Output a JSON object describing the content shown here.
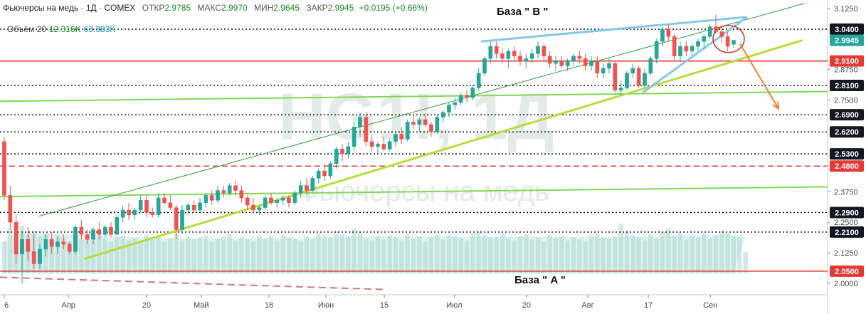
{
  "header": {
    "title": "Фьючерсы на медь · 1Д · COMEX",
    "open_label": "ОТКР",
    "open": "2.9785",
    "high_label": "МАКС",
    "high": "2.9970",
    "low_label": "МИН",
    "low": "2.9645",
    "close_label": "ЗАКР",
    "close": "2.9945",
    "change": "+0.0195 (+0.66%)",
    "volume_label": "Объём 20",
    "volume_value": "12.316K",
    "volume_ma": "63.383K"
  },
  "annotations": {
    "base_b": "База \" B \"",
    "base_a": "База \" A \""
  },
  "watermark": {
    "symbol": "HG1!, 1Д",
    "name": "Фьючерсы на медь"
  },
  "colors": {
    "up": "#26a69a",
    "down": "#ef5350",
    "level_red": "#e53935",
    "trend_green": "#7ed957",
    "trend_olive": "#b8dc3c",
    "channel": "#2e9e3c",
    "wedge": "#87c7e8",
    "arrow": "#f07f2a",
    "volume": "#a9d8d0"
  },
  "chart_data": {
    "type": "candlestick",
    "title": "Фьючерсы на медь · 1Д · COMEX",
    "y_axis": {
      "ticks": [
        "3.1250",
        "2.8750",
        "2.7500",
        "2.3750",
        "2.2500",
        "2.1250",
        "2.0000"
      ],
      "range": [
        1.965,
        3.145
      ]
    },
    "x_axis": {
      "tick_labels": [
        "6",
        "Апр",
        "20",
        "Май",
        "18",
        "Июн",
        "15",
        "Июл",
        "20",
        "Авг",
        "17",
        "Сен"
      ]
    },
    "price_levels": [
      {
        "value": 3.04,
        "label": "3.0400",
        "style": "dotted",
        "color": "#000000"
      },
      {
        "value": 2.91,
        "label": "2.9100",
        "style": "solid",
        "color": "#e53935"
      },
      {
        "value": 2.81,
        "label": "2.8100",
        "style": "dotted",
        "color": "#000000"
      },
      {
        "value": 2.69,
        "label": "2.6900",
        "style": "dotted",
        "color": "#000000"
      },
      {
        "value": 2.62,
        "label": "2.6200",
        "style": "dotted",
        "color": "#000000"
      },
      {
        "value": 2.53,
        "label": "2.5300",
        "style": "dotted",
        "color": "#000000"
      },
      {
        "value": 2.48,
        "label": "2.4800",
        "style": "dashed",
        "color": "#e53935"
      },
      {
        "value": 2.29,
        "label": "2.2900",
        "style": "dotted",
        "color": "#000000"
      },
      {
        "value": 2.21,
        "label": "2.2100",
        "style": "dotted",
        "color": "#000000"
      },
      {
        "value": 2.05,
        "label": "2.0500",
        "style": "solid",
        "color": "#e53935"
      }
    ],
    "last_price": {
      "value": 2.9945,
      "label": "2.9945"
    },
    "candles": [
      {
        "o": 2.58,
        "h": 2.6,
        "l": 2.34,
        "c": 2.36
      },
      {
        "o": 2.36,
        "h": 2.4,
        "l": 2.22,
        "c": 2.25
      },
      {
        "o": 2.25,
        "h": 2.28,
        "l": 2.08,
        "c": 2.12
      },
      {
        "o": 2.12,
        "h": 2.21,
        "l": 2.0,
        "c": 2.18
      },
      {
        "o": 2.18,
        "h": 2.23,
        "l": 2.09,
        "c": 2.13
      },
      {
        "o": 2.13,
        "h": 2.2,
        "l": 2.06,
        "c": 2.08
      },
      {
        "o": 2.08,
        "h": 2.16,
        "l": 2.06,
        "c": 2.14
      },
      {
        "o": 2.14,
        "h": 2.2,
        "l": 2.11,
        "c": 2.18
      },
      {
        "o": 2.18,
        "h": 2.21,
        "l": 2.12,
        "c": 2.15
      },
      {
        "o": 2.15,
        "h": 2.19,
        "l": 2.12,
        "c": 2.17
      },
      {
        "o": 2.17,
        "h": 2.2,
        "l": 2.14,
        "c": 2.16
      },
      {
        "o": 2.16,
        "h": 2.17,
        "l": 2.12,
        "c": 2.13
      },
      {
        "o": 2.13,
        "h": 2.24,
        "l": 2.12,
        "c": 2.23
      },
      {
        "o": 2.23,
        "h": 2.26,
        "l": 2.18,
        "c": 2.2
      },
      {
        "o": 2.2,
        "h": 2.22,
        "l": 2.16,
        "c": 2.18
      },
      {
        "o": 2.18,
        "h": 2.23,
        "l": 2.16,
        "c": 2.22
      },
      {
        "o": 2.22,
        "h": 2.25,
        "l": 2.18,
        "c": 2.2
      },
      {
        "o": 2.2,
        "h": 2.24,
        "l": 2.19,
        "c": 2.23
      },
      {
        "o": 2.23,
        "h": 2.25,
        "l": 2.19,
        "c": 2.2
      },
      {
        "o": 2.2,
        "h": 2.28,
        "l": 2.2,
        "c": 2.27
      },
      {
        "o": 2.27,
        "h": 2.32,
        "l": 2.25,
        "c": 2.3
      },
      {
        "o": 2.3,
        "h": 2.33,
        "l": 2.26,
        "c": 2.28
      },
      {
        "o": 2.28,
        "h": 2.31,
        "l": 2.26,
        "c": 2.3
      },
      {
        "o": 2.3,
        "h": 2.36,
        "l": 2.29,
        "c": 2.34
      },
      {
        "o": 2.34,
        "h": 2.36,
        "l": 2.27,
        "c": 2.29
      },
      {
        "o": 2.29,
        "h": 2.31,
        "l": 2.27,
        "c": 2.28
      },
      {
        "o": 2.28,
        "h": 2.37,
        "l": 2.27,
        "c": 2.35
      },
      {
        "o": 2.35,
        "h": 2.37,
        "l": 2.32,
        "c": 2.33
      },
      {
        "o": 2.33,
        "h": 2.36,
        "l": 2.3,
        "c": 2.31
      },
      {
        "o": 2.31,
        "h": 2.32,
        "l": 2.18,
        "c": 2.22
      },
      {
        "o": 2.22,
        "h": 2.32,
        "l": 2.2,
        "c": 2.3
      },
      {
        "o": 2.3,
        "h": 2.33,
        "l": 2.28,
        "c": 2.32
      },
      {
        "o": 2.32,
        "h": 2.34,
        "l": 2.29,
        "c": 2.3
      },
      {
        "o": 2.3,
        "h": 2.35,
        "l": 2.29,
        "c": 2.33
      },
      {
        "o": 2.33,
        "h": 2.37,
        "l": 2.31,
        "c": 2.36
      },
      {
        "o": 2.36,
        "h": 2.38,
        "l": 2.32,
        "c": 2.34
      },
      {
        "o": 2.34,
        "h": 2.4,
        "l": 2.33,
        "c": 2.38
      },
      {
        "o": 2.38,
        "h": 2.4,
        "l": 2.35,
        "c": 2.37
      },
      {
        "o": 2.37,
        "h": 2.41,
        "l": 2.36,
        "c": 2.4
      },
      {
        "o": 2.4,
        "h": 2.42,
        "l": 2.36,
        "c": 2.38
      },
      {
        "o": 2.38,
        "h": 2.4,
        "l": 2.33,
        "c": 2.35
      },
      {
        "o": 2.35,
        "h": 2.36,
        "l": 2.3,
        "c": 2.32
      },
      {
        "o": 2.32,
        "h": 2.35,
        "l": 2.29,
        "c": 2.3
      },
      {
        "o": 2.3,
        "h": 2.32,
        "l": 2.28,
        "c": 2.31
      },
      {
        "o": 2.31,
        "h": 2.36,
        "l": 2.3,
        "c": 2.35
      },
      {
        "o": 2.35,
        "h": 2.37,
        "l": 2.32,
        "c": 2.33
      },
      {
        "o": 2.33,
        "h": 2.35,
        "l": 2.31,
        "c": 2.34
      },
      {
        "o": 2.34,
        "h": 2.36,
        "l": 2.32,
        "c": 2.35
      },
      {
        "o": 2.35,
        "h": 2.36,
        "l": 2.31,
        "c": 2.33
      },
      {
        "o": 2.33,
        "h": 2.38,
        "l": 2.32,
        "c": 2.37
      },
      {
        "o": 2.37,
        "h": 2.42,
        "l": 2.35,
        "c": 2.4
      },
      {
        "o": 2.4,
        "h": 2.43,
        "l": 2.36,
        "c": 2.38
      },
      {
        "o": 2.38,
        "h": 2.44,
        "l": 2.37,
        "c": 2.43
      },
      {
        "o": 2.43,
        "h": 2.47,
        "l": 2.41,
        "c": 2.46
      },
      {
        "o": 2.46,
        "h": 2.49,
        "l": 2.42,
        "c": 2.44
      },
      {
        "o": 2.44,
        "h": 2.5,
        "l": 2.43,
        "c": 2.49
      },
      {
        "o": 2.49,
        "h": 2.56,
        "l": 2.47,
        "c": 2.55
      },
      {
        "o": 2.55,
        "h": 2.57,
        "l": 2.5,
        "c": 2.53
      },
      {
        "o": 2.53,
        "h": 2.58,
        "l": 2.51,
        "c": 2.56
      },
      {
        "o": 2.56,
        "h": 2.66,
        "l": 2.54,
        "c": 2.64
      },
      {
        "o": 2.64,
        "h": 2.7,
        "l": 2.6,
        "c": 2.68
      },
      {
        "o": 2.68,
        "h": 2.7,
        "l": 2.56,
        "c": 2.58
      },
      {
        "o": 2.58,
        "h": 2.61,
        "l": 2.54,
        "c": 2.56
      },
      {
        "o": 2.56,
        "h": 2.58,
        "l": 2.53,
        "c": 2.57
      },
      {
        "o": 2.57,
        "h": 2.6,
        "l": 2.54,
        "c": 2.55
      },
      {
        "o": 2.55,
        "h": 2.59,
        "l": 2.54,
        "c": 2.58
      },
      {
        "o": 2.58,
        "h": 2.62,
        "l": 2.56,
        "c": 2.61
      },
      {
        "o": 2.61,
        "h": 2.64,
        "l": 2.57,
        "c": 2.59
      },
      {
        "o": 2.59,
        "h": 2.67,
        "l": 2.58,
        "c": 2.66
      },
      {
        "o": 2.66,
        "h": 2.69,
        "l": 2.63,
        "c": 2.65
      },
      {
        "o": 2.65,
        "h": 2.68,
        "l": 2.62,
        "c": 2.67
      },
      {
        "o": 2.67,
        "h": 2.69,
        "l": 2.64,
        "c": 2.65
      },
      {
        "o": 2.65,
        "h": 2.66,
        "l": 2.6,
        "c": 2.62
      },
      {
        "o": 2.62,
        "h": 2.69,
        "l": 2.61,
        "c": 2.68
      },
      {
        "o": 2.68,
        "h": 2.71,
        "l": 2.66,
        "c": 2.7
      },
      {
        "o": 2.7,
        "h": 2.74,
        "l": 2.68,
        "c": 2.73
      },
      {
        "o": 2.73,
        "h": 2.76,
        "l": 2.71,
        "c": 2.74
      },
      {
        "o": 2.74,
        "h": 2.78,
        "l": 2.73,
        "c": 2.77
      },
      {
        "o": 2.77,
        "h": 2.79,
        "l": 2.74,
        "c": 2.76
      },
      {
        "o": 2.76,
        "h": 2.81,
        "l": 2.75,
        "c": 2.8
      },
      {
        "o": 2.8,
        "h": 2.88,
        "l": 2.79,
        "c": 2.86
      },
      {
        "o": 2.86,
        "h": 2.93,
        "l": 2.85,
        "c": 2.92
      },
      {
        "o": 2.92,
        "h": 2.99,
        "l": 2.9,
        "c": 2.97
      },
      {
        "o": 2.97,
        "h": 2.99,
        "l": 2.92,
        "c": 2.94
      },
      {
        "o": 2.94,
        "h": 2.96,
        "l": 2.9,
        "c": 2.92
      },
      {
        "o": 2.92,
        "h": 2.96,
        "l": 2.88,
        "c": 2.95
      },
      {
        "o": 2.95,
        "h": 2.97,
        "l": 2.91,
        "c": 2.93
      },
      {
        "o": 2.93,
        "h": 2.95,
        "l": 2.89,
        "c": 2.91
      },
      {
        "o": 2.91,
        "h": 2.94,
        "l": 2.88,
        "c": 2.92
      },
      {
        "o": 2.92,
        "h": 2.96,
        "l": 2.9,
        "c": 2.94
      },
      {
        "o": 2.94,
        "h": 2.99,
        "l": 2.92,
        "c": 2.97
      },
      {
        "o": 2.97,
        "h": 2.98,
        "l": 2.91,
        "c": 2.93
      },
      {
        "o": 2.93,
        "h": 2.95,
        "l": 2.88,
        "c": 2.9
      },
      {
        "o": 2.9,
        "h": 2.93,
        "l": 2.87,
        "c": 2.91
      },
      {
        "o": 2.91,
        "h": 2.93,
        "l": 2.88,
        "c": 2.89
      },
      {
        "o": 2.89,
        "h": 2.92,
        "l": 2.87,
        "c": 2.91
      },
      {
        "o": 2.91,
        "h": 2.94,
        "l": 2.89,
        "c": 2.93
      },
      {
        "o": 2.93,
        "h": 2.95,
        "l": 2.9,
        "c": 2.92
      },
      {
        "o": 2.92,
        "h": 2.94,
        "l": 2.87,
        "c": 2.89
      },
      {
        "o": 2.89,
        "h": 2.93,
        "l": 2.87,
        "c": 2.91
      },
      {
        "o": 2.91,
        "h": 2.93,
        "l": 2.84,
        "c": 2.86
      },
      {
        "o": 2.86,
        "h": 2.9,
        "l": 2.84,
        "c": 2.88
      },
      {
        "o": 2.88,
        "h": 2.92,
        "l": 2.86,
        "c": 2.9
      },
      {
        "o": 2.9,
        "h": 2.91,
        "l": 2.78,
        "c": 2.79
      },
      {
        "o": 2.79,
        "h": 2.83,
        "l": 2.77,
        "c": 2.8
      },
      {
        "o": 2.8,
        "h": 2.87,
        "l": 2.79,
        "c": 2.86
      },
      {
        "o": 2.86,
        "h": 2.9,
        "l": 2.84,
        "c": 2.88
      },
      {
        "o": 2.88,
        "h": 2.89,
        "l": 2.8,
        "c": 2.81
      },
      {
        "o": 2.81,
        "h": 2.88,
        "l": 2.8,
        "c": 2.86
      },
      {
        "o": 2.86,
        "h": 2.93,
        "l": 2.85,
        "c": 2.92
      },
      {
        "o": 2.92,
        "h": 3.0,
        "l": 2.9,
        "c": 2.99
      },
      {
        "o": 2.99,
        "h": 3.05,
        "l": 2.97,
        "c": 3.04
      },
      {
        "o": 3.04,
        "h": 3.06,
        "l": 2.99,
        "c": 3.01
      },
      {
        "o": 3.01,
        "h": 3.02,
        "l": 2.91,
        "c": 2.93
      },
      {
        "o": 2.93,
        "h": 2.99,
        "l": 2.91,
        "c": 2.97
      },
      {
        "o": 2.97,
        "h": 2.99,
        "l": 2.93,
        "c": 2.95
      },
      {
        "o": 2.95,
        "h": 2.98,
        "l": 2.93,
        "c": 2.97
      },
      {
        "o": 2.97,
        "h": 3.0,
        "l": 2.95,
        "c": 2.99
      },
      {
        "o": 2.99,
        "h": 3.02,
        "l": 2.96,
        "c": 3.01
      },
      {
        "o": 3.01,
        "h": 3.06,
        "l": 3.0,
        "c": 3.05
      },
      {
        "o": 3.05,
        "h": 3.1,
        "l": 3.02,
        "c": 3.03
      },
      {
        "o": 3.03,
        "h": 3.05,
        "l": 2.98,
        "c": 3.01
      },
      {
        "o": 3.01,
        "h": 3.03,
        "l": 2.95,
        "c": 2.97
      },
      {
        "o": 2.9785,
        "h": 2.997,
        "l": 2.9645,
        "c": 2.9945
      }
    ],
    "volume": [
      30,
      42,
      38,
      45,
      36,
      40,
      35,
      38,
      33,
      36,
      34,
      30,
      37,
      32,
      35,
      31,
      36,
      33,
      30,
      34,
      35,
      31,
      33,
      30,
      36,
      32,
      34,
      30,
      33,
      37,
      31,
      35,
      32,
      34,
      36,
      30,
      33,
      35,
      38,
      31,
      34,
      32,
      30,
      36,
      33,
      35,
      31,
      37,
      34,
      32,
      30,
      35,
      33,
      38,
      36,
      34,
      40,
      37,
      35,
      42,
      39,
      33,
      31,
      35,
      32,
      36,
      34,
      31,
      38,
      33,
      35,
      30,
      34,
      37,
      32,
      36,
      35,
      33,
      31,
      38,
      40,
      36,
      34,
      35,
      38,
      33,
      31,
      35,
      37,
      32,
      34,
      30,
      36,
      33,
      35,
      31,
      34,
      32,
      30,
      36,
      38,
      34,
      33,
      35,
      47,
      40,
      36,
      34,
      31,
      37,
      33,
      39,
      42,
      36,
      38,
      32,
      35,
      34,
      37,
      33,
      36,
      40,
      38,
      35,
      34,
      20
    ]
  }
}
